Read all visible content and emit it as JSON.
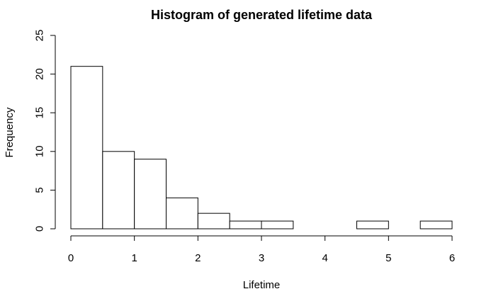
{
  "chart_data": {
    "type": "bar",
    "title": "Histogram of generated lifetime data",
    "xlabel": "Lifetime",
    "ylabel": "Frequency",
    "bin_edges": [
      0,
      0.5,
      1,
      1.5,
      2,
      2.5,
      3,
      3.5,
      4,
      4.5,
      5,
      5.5,
      6
    ],
    "values": [
      21,
      10,
      9,
      4,
      2,
      1,
      1,
      0,
      0,
      1,
      0,
      1
    ],
    "xlim": [
      0,
      6
    ],
    "ylim": [
      0,
      25
    ],
    "x_ticks": [
      0,
      1,
      2,
      3,
      4,
      5,
      6
    ],
    "y_ticks": [
      0,
      5,
      10,
      15,
      20,
      25
    ],
    "grid": false,
    "legend": "none"
  }
}
